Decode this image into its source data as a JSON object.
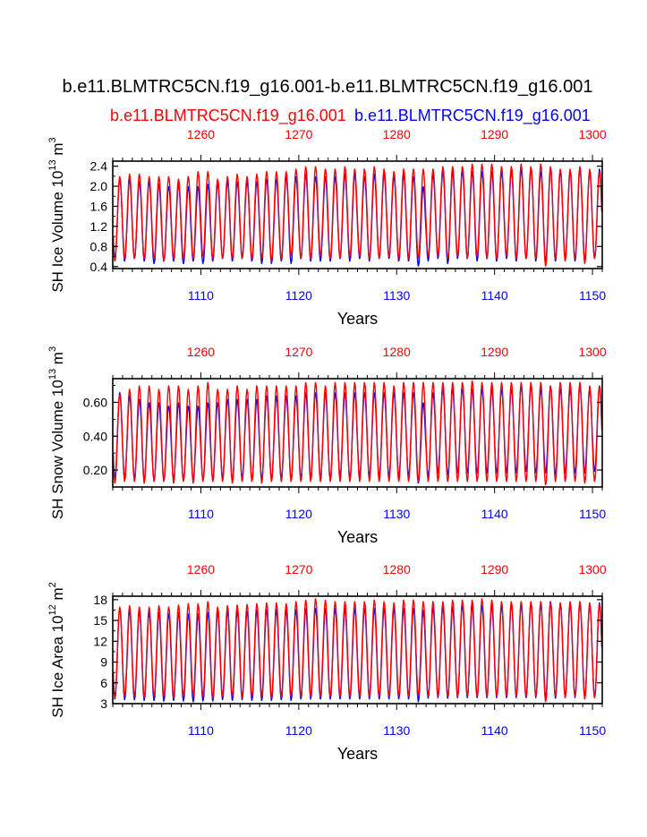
{
  "title": "b.e11.BLMTRC5CN.f19_g16.001-b.e11.BLMTRC5CN.f19_g16.001",
  "legend": {
    "red_label": "b.e11.BLMTRC5CN.f19_g16.001",
    "blue_label": "b.e11.BLMTRC5CN.f19_g16.001"
  },
  "colors": {
    "red": "#ff0000",
    "blue": "#0000ff",
    "axis": "#000000"
  },
  "chart_data": [
    {
      "type": "line",
      "ylabel": "SH Ice Volume 10",
      "ylabel_exp": "13",
      "ylabel_unit": "m",
      "ylabel_unit_exp": "3",
      "xlabel": "Years",
      "xlim": [
        1101,
        1151
      ],
      "top_xlim": [
        1251,
        1301
      ],
      "ylim": [
        0.36,
        2.5
      ],
      "yticks": [
        0.4,
        0.8,
        1.2,
        1.6,
        2.0,
        2.4
      ],
      "ytick_labels": [
        "0.4",
        "0.8",
        "1.2",
        "1.6",
        "2.0",
        "2.4"
      ],
      "xticks": [
        1110,
        1120,
        1130,
        1140,
        1150
      ],
      "xtick_labels": [
        "1110",
        "1120",
        "1130",
        "1140",
        "1150"
      ],
      "top_xticks": [
        1260,
        1270,
        1280,
        1290,
        1300
      ],
      "top_xtick_labels": [
        "1260",
        "1270",
        "1280",
        "1290",
        "1300"
      ],
      "series": [
        {
          "name": "b.e11.BLMTRC5CN.f19_g16.001 (years 1251-1301)",
          "color": "red",
          "annual_max": [
            2.2,
            2.25,
            2.25,
            2.2,
            2.2,
            2.2,
            2.15,
            2.2,
            2.3,
            2.3,
            2.15,
            2.2,
            2.25,
            2.2,
            2.25,
            2.3,
            2.3,
            2.3,
            2.35,
            2.4,
            2.4,
            2.35,
            2.35,
            2.4,
            2.35,
            2.35,
            2.4,
            2.35,
            2.3,
            2.35,
            2.35,
            2.35,
            2.35,
            2.4,
            2.4,
            2.4,
            2.45,
            2.45,
            2.45,
            2.4,
            2.4,
            2.45,
            2.4,
            2.45,
            2.4,
            2.35,
            2.35,
            2.4,
            2.35,
            2.3
          ],
          "annual_min": [
            0.5,
            0.55,
            0.55,
            0.55,
            0.55,
            0.5,
            0.55,
            0.55,
            0.55,
            0.6,
            0.55,
            0.55,
            0.55,
            0.55,
            0.55,
            0.55,
            0.5,
            0.55,
            0.6,
            0.55,
            0.55,
            0.6,
            0.55,
            0.55,
            0.6,
            0.6,
            0.55,
            0.55,
            0.6,
            0.55,
            0.55,
            0.55,
            0.6,
            0.6,
            0.55,
            0.6,
            0.55,
            0.6,
            0.55,
            0.55,
            0.6,
            0.55,
            0.55,
            0.55,
            0.4,
            0.55,
            0.5,
            0.55,
            0.45,
            0.55
          ]
        },
        {
          "name": "b.e11.BLMTRC5CN.f19_g16.001 (years 1101-1151)",
          "color": "blue",
          "annual_max": [
            2.15,
            2.15,
            2.1,
            2.1,
            2.05,
            2.0,
            2.05,
            2.0,
            2.0,
            2.05,
            2.05,
            2.1,
            2.1,
            2.1,
            2.1,
            2.15,
            2.15,
            2.2,
            2.2,
            2.25,
            2.2,
            2.2,
            2.2,
            2.25,
            2.25,
            2.2,
            2.25,
            2.25,
            2.2,
            2.25,
            2.2,
            2.0,
            2.25,
            2.3,
            2.3,
            2.3,
            2.3,
            2.3,
            2.3,
            2.3,
            2.3,
            2.35,
            2.35,
            2.3,
            2.35,
            2.3,
            2.3,
            2.35,
            2.3,
            2.35
          ],
          "annual_min": [
            0.55,
            0.5,
            0.55,
            0.5,
            0.45,
            0.5,
            0.5,
            0.45,
            0.5,
            0.45,
            0.5,
            0.55,
            0.5,
            0.55,
            0.5,
            0.45,
            0.45,
            0.5,
            0.45,
            0.55,
            0.5,
            0.5,
            0.5,
            0.55,
            0.5,
            0.55,
            0.5,
            0.55,
            0.55,
            0.5,
            0.5,
            0.4,
            0.5,
            0.55,
            0.45,
            0.55,
            0.55,
            0.5,
            0.55,
            0.5,
            0.55,
            0.5,
            0.55,
            0.5,
            0.5,
            0.5,
            0.55,
            0.5,
            0.5,
            0.55
          ]
        }
      ]
    },
    {
      "type": "line",
      "ylabel": "SH Snow Volume 10",
      "ylabel_exp": "13",
      "ylabel_unit": "m",
      "ylabel_unit_exp": "3",
      "xlabel": "Years",
      "xlim": [
        1101,
        1151
      ],
      "top_xlim": [
        1251,
        1301
      ],
      "ylim": [
        0.1,
        0.74
      ],
      "yticks": [
        0.2,
        0.4,
        0.6
      ],
      "ytick_labels": [
        "0.20",
        "0.40",
        "0.60"
      ],
      "xticks": [
        1110,
        1120,
        1130,
        1140,
        1150
      ],
      "xtick_labels": [
        "1110",
        "1120",
        "1130",
        "1140",
        "1150"
      ],
      "top_xticks": [
        1260,
        1270,
        1280,
        1290,
        1300
      ],
      "top_xtick_labels": [
        "1260",
        "1270",
        "1280",
        "1290",
        "1300"
      ],
      "series": [
        {
          "name": "b.e11.BLMTRC5CN.f19_g16.001 (years 1251-1301)",
          "color": "red",
          "annual_max": [
            0.65,
            0.68,
            0.7,
            0.7,
            0.68,
            0.7,
            0.7,
            0.68,
            0.7,
            0.72,
            0.68,
            0.68,
            0.7,
            0.68,
            0.7,
            0.7,
            0.7,
            0.7,
            0.7,
            0.72,
            0.72,
            0.7,
            0.72,
            0.72,
            0.72,
            0.72,
            0.72,
            0.72,
            0.7,
            0.72,
            0.72,
            0.72,
            0.72,
            0.72,
            0.72,
            0.72,
            0.73,
            0.72,
            0.72,
            0.72,
            0.72,
            0.72,
            0.72,
            0.72,
            0.7,
            0.72,
            0.72,
            0.72,
            0.7,
            0.7
          ],
          "annual_min": [
            0.12,
            0.13,
            0.13,
            0.12,
            0.13,
            0.13,
            0.12,
            0.13,
            0.12,
            0.13,
            0.13,
            0.13,
            0.12,
            0.13,
            0.13,
            0.12,
            0.13,
            0.13,
            0.13,
            0.13,
            0.13,
            0.13,
            0.13,
            0.13,
            0.13,
            0.13,
            0.13,
            0.13,
            0.13,
            0.13,
            0.13,
            0.13,
            0.13,
            0.13,
            0.13,
            0.13,
            0.13,
            0.13,
            0.13,
            0.13,
            0.13,
            0.13,
            0.13,
            0.13,
            0.11,
            0.13,
            0.13,
            0.13,
            0.12,
            0.13
          ]
        },
        {
          "name": "b.e11.BLMTRC5CN.f19_g16.001 (years 1101-1151)",
          "color": "blue",
          "annual_max": [
            0.66,
            0.64,
            0.62,
            0.6,
            0.6,
            0.58,
            0.6,
            0.58,
            0.58,
            0.6,
            0.6,
            0.62,
            0.62,
            0.62,
            0.62,
            0.64,
            0.64,
            0.64,
            0.64,
            0.66,
            0.66,
            0.66,
            0.66,
            0.66,
            0.66,
            0.66,
            0.66,
            0.66,
            0.66,
            0.66,
            0.66,
            0.6,
            0.66,
            0.68,
            0.68,
            0.68,
            0.68,
            0.68,
            0.68,
            0.68,
            0.68,
            0.7,
            0.7,
            0.68,
            0.7,
            0.68,
            0.68,
            0.7,
            0.68,
            0.7
          ],
          "annual_min": [
            0.15,
            0.15,
            0.15,
            0.14,
            0.14,
            0.14,
            0.14,
            0.14,
            0.14,
            0.14,
            0.14,
            0.15,
            0.14,
            0.15,
            0.14,
            0.14,
            0.14,
            0.15,
            0.14,
            0.15,
            0.15,
            0.15,
            0.15,
            0.16,
            0.15,
            0.16,
            0.16,
            0.16,
            0.16,
            0.16,
            0.16,
            0.12,
            0.16,
            0.18,
            0.17,
            0.18,
            0.18,
            0.18,
            0.18,
            0.18,
            0.18,
            0.18,
            0.19,
            0.18,
            0.18,
            0.17,
            0.18,
            0.18,
            0.18,
            0.19
          ]
        }
      ]
    },
    {
      "type": "line",
      "ylabel": "SH Ice Area 10",
      "ylabel_exp": "12",
      "ylabel_unit": "m",
      "ylabel_unit_exp": "2",
      "xlabel": "Years",
      "xlim": [
        1101,
        1151
      ],
      "top_xlim": [
        1251,
        1301
      ],
      "ylim": [
        3,
        18.5
      ],
      "yticks": [
        3,
        6,
        9,
        12,
        15,
        18
      ],
      "ytick_labels": [
        "3",
        "6",
        "9",
        "12",
        "15",
        "18"
      ],
      "xticks": [
        1110,
        1120,
        1130,
        1140,
        1150
      ],
      "xtick_labels": [
        "1110",
        "1120",
        "1130",
        "1140",
        "1150"
      ],
      "top_xticks": [
        1260,
        1270,
        1280,
        1290,
        1300
      ],
      "top_xtick_labels": [
        "1260",
        "1270",
        "1280",
        "1290",
        "1300"
      ],
      "series": [
        {
          "name": "b.e11.BLMTRC5CN.f19_g16.001 (years 1251-1301)",
          "color": "red",
          "annual_max": [
            17.0,
            17.2,
            17.0,
            17.0,
            17.2,
            17.0,
            17.3,
            17.5,
            17.5,
            17.8,
            17.0,
            17.2,
            17.3,
            17.4,
            17.5,
            17.6,
            17.6,
            17.5,
            17.8,
            18.0,
            18.2,
            18.0,
            17.8,
            17.8,
            17.8,
            17.8,
            18.0,
            17.8,
            17.6,
            18.0,
            18.0,
            17.8,
            17.8,
            17.8,
            18.0,
            18.0,
            18.0,
            18.2,
            18.0,
            17.8,
            17.8,
            17.8,
            17.8,
            17.8,
            17.6,
            17.6,
            17.8,
            17.8,
            17.6,
            17.4
          ],
          "annual_min": [
            3.8,
            4.0,
            4.0,
            3.8,
            4.0,
            4.0,
            3.8,
            4.0,
            4.0,
            4.0,
            3.8,
            4.0,
            4.0,
            3.8,
            4.0,
            4.0,
            3.8,
            4.0,
            4.0,
            4.0,
            4.0,
            4.0,
            4.0,
            4.0,
            4.0,
            4.0,
            4.0,
            4.0,
            4.0,
            4.0,
            4.0,
            4.0,
            4.0,
            4.0,
            4.0,
            4.0,
            4.0,
            4.0,
            4.0,
            4.0,
            4.0,
            4.0,
            4.0,
            4.0,
            3.2,
            4.0,
            3.8,
            4.0,
            3.6,
            3.8
          ]
        },
        {
          "name": "b.e11.BLMTRC5CN.f19_g16.001 (years 1101-1151)",
          "color": "blue",
          "annual_max": [
            16.8,
            16.5,
            16.4,
            16.2,
            16.2,
            16.0,
            16.2,
            16.0,
            16.0,
            16.2,
            16.2,
            16.4,
            16.4,
            16.4,
            16.5,
            16.6,
            16.6,
            16.6,
            16.6,
            16.8,
            16.8,
            16.8,
            16.8,
            16.8,
            16.8,
            16.8,
            16.8,
            16.8,
            16.8,
            16.8,
            16.8,
            16.5,
            16.9,
            17.0,
            17.0,
            17.2,
            17.2,
            17.2,
            17.2,
            17.2,
            17.4,
            17.4,
            17.6,
            17.4,
            17.8,
            17.4,
            17.4,
            17.6,
            17.4,
            17.6
          ],
          "annual_min": [
            3.6,
            3.5,
            3.5,
            3.4,
            3.4,
            3.3,
            3.4,
            3.3,
            3.2,
            3.3,
            3.3,
            3.5,
            3.4,
            3.5,
            3.4,
            3.4,
            3.4,
            3.5,
            3.4,
            3.6,
            3.6,
            3.6,
            3.6,
            3.6,
            3.6,
            3.6,
            3.6,
            3.6,
            3.6,
            3.6,
            3.6,
            3.2,
            3.7,
            3.8,
            3.7,
            3.8,
            3.8,
            3.8,
            3.8,
            3.8,
            3.8,
            3.8,
            3.8,
            3.8,
            3.8,
            3.7,
            3.8,
            3.8,
            3.8,
            3.8
          ]
        }
      ]
    }
  ]
}
